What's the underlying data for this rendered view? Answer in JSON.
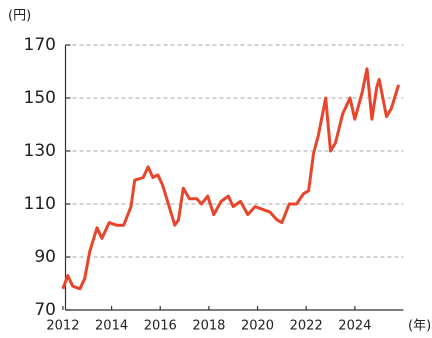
{
  "chart_data": {
    "type": "line",
    "y_unit": "(円)",
    "x_unit": "(年)",
    "x": [
      2012.0,
      2012.2,
      2012.4,
      2012.7,
      2012.9,
      2013.1,
      2013.4,
      2013.6,
      2013.9,
      2014.2,
      2014.5,
      2014.8,
      2014.95,
      2015.3,
      2015.5,
      2015.7,
      2015.9,
      2016.1,
      2016.4,
      2016.6,
      2016.75,
      2016.95,
      2017.2,
      2017.5,
      2017.7,
      2017.95,
      2018.2,
      2018.5,
      2018.8,
      2019.0,
      2019.3,
      2019.6,
      2019.9,
      2020.2,
      2020.5,
      2020.8,
      2021.0,
      2021.3,
      2021.6,
      2021.9,
      2022.1,
      2022.3,
      2022.5,
      2022.8,
      2023.0,
      2023.2,
      2023.5,
      2023.8,
      2024.0,
      2024.3,
      2024.5,
      2024.7,
      2024.9,
      2025.0,
      2025.3,
      2025.5,
      2025.8
    ],
    "series": [
      {
        "color": "#e8452c",
        "values": [
          78,
          83,
          79,
          78,
          82,
          92,
          101,
          97,
          103,
          102,
          102,
          109,
          119,
          120,
          124,
          120,
          121,
          117,
          108,
          102,
          104,
          116,
          112,
          112,
          110,
          113,
          106,
          111,
          113,
          109,
          111,
          106,
          109,
          108,
          107,
          104,
          103,
          110,
          110,
          114,
          115,
          129,
          136,
          150,
          130,
          133,
          144,
          150,
          142,
          152,
          161,
          142,
          154,
          157,
          143,
          146,
          155
        ]
      }
    ],
    "xlim": [
      2011.9,
      2026
    ],
    "xticks": [
      2012,
      2014,
      2016,
      2018,
      2020,
      2022,
      2024
    ],
    "ylim": [
      70,
      170
    ],
    "yticks": [
      70,
      90,
      110,
      130,
      150,
      170
    ],
    "grid": true
  }
}
